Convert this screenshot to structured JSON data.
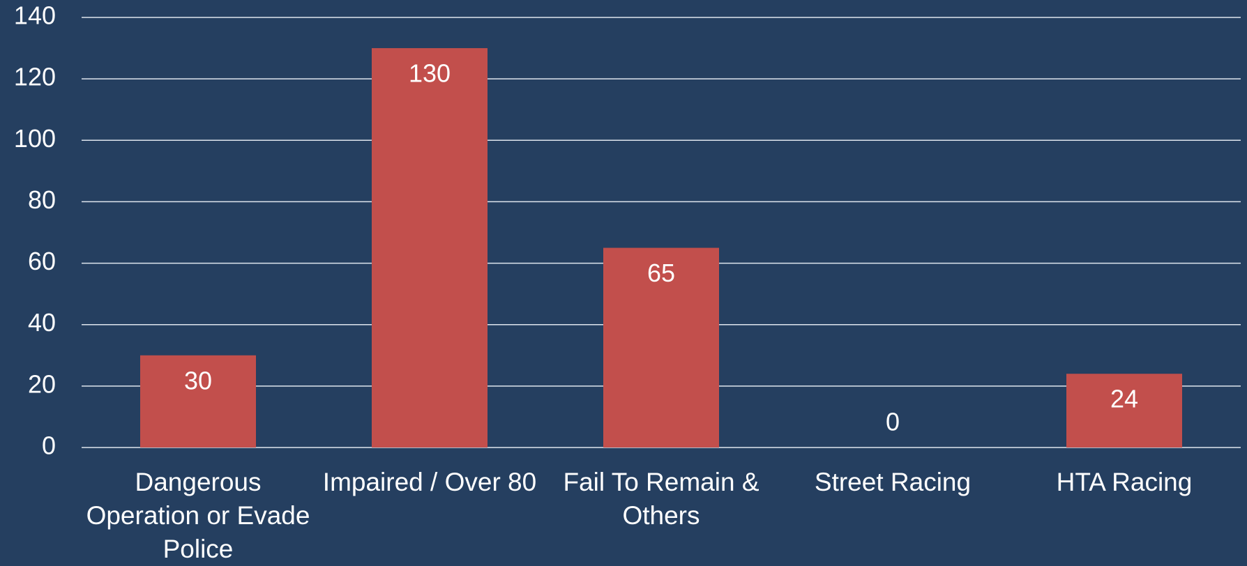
{
  "chart_data": {
    "type": "bar",
    "categories": [
      "Dangerous Operation or Evade Police",
      "Impaired / Over 80",
      "Fail To Remain & Others",
      "Street Racing",
      "HTA Racing"
    ],
    "values": [
      30,
      130,
      65,
      0,
      24
    ],
    "color": "#c24f4c",
    "ylim": [
      0,
      140
    ],
    "yticks": [
      0,
      20,
      40,
      60,
      80,
      100,
      120,
      140
    ],
    "grid": true
  }
}
